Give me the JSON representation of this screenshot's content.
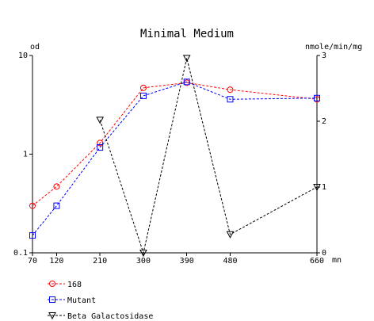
{
  "chart_data": {
    "type": "line",
    "title": "Minimal Medium",
    "xlabel": "mn",
    "ylabel_left": "od",
    "ylabel_right": "nmole/min/mg",
    "x_ticks": [
      70,
      120,
      210,
      300,
      390,
      480,
      660
    ],
    "x_tick_labels": [
      "70",
      "120",
      "210",
      "300",
      "390",
      "480",
      "660"
    ],
    "y_left_scale": "log",
    "y_left_lim": [
      0.1,
      10
    ],
    "y_left_ticks": [
      0.1,
      1,
      10
    ],
    "y_left_tick_labels": [
      "0.1",
      "1",
      "10"
    ],
    "y_right_lim": [
      0,
      3
    ],
    "y_right_ticks": [
      0,
      1,
      2,
      3
    ],
    "y_right_tick_labels": [
      "0",
      "1",
      "2",
      "3"
    ],
    "legend_position": "bottom-left",
    "series": [
      {
        "name": "168",
        "axis": "left",
        "marker": "circle",
        "color": "#ff0000",
        "x": [
          70,
          120,
          210,
          300,
          390,
          480,
          660
        ],
        "values": [
          0.3,
          0.47,
          1.3,
          4.7,
          5.3,
          4.5,
          3.6
        ]
      },
      {
        "name": "Mutant",
        "axis": "left",
        "marker": "square",
        "color": "#0000ff",
        "x": [
          70,
          120,
          210,
          300,
          390,
          480,
          660
        ],
        "values": [
          0.15,
          0.3,
          1.17,
          3.9,
          5.4,
          3.6,
          3.7
        ]
      },
      {
        "name": "Beta Galactosidase",
        "axis": "right",
        "marker": "triangle-down",
        "color": "#000000",
        "x": [
          210,
          300,
          390,
          480,
          660
        ],
        "values": [
          2.02,
          0.0,
          2.96,
          0.28,
          1.0
        ]
      }
    ]
  }
}
